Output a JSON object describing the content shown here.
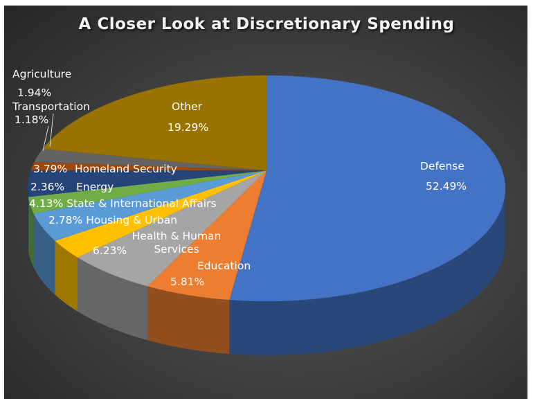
{
  "chart_data": {
    "type": "pie",
    "title": "A Closer Look at Discretionary Spending",
    "style": "3d-pie",
    "legend": "none",
    "slices": [
      {
        "label": "Defense",
        "value": 52.49,
        "display": "52.49%",
        "color": "#4472C4"
      },
      {
        "label": "Education",
        "value": 5.81,
        "display": "5.81%",
        "color": "#ED7D31"
      },
      {
        "label": "Health & Human Services",
        "value": 6.23,
        "display": "6.23%",
        "color": "#A5A5A5"
      },
      {
        "label": "Housing & Urban",
        "value": 2.78,
        "display": "2.78%",
        "color": "#FFC000"
      },
      {
        "label": "State & International Affairs",
        "value": 4.13,
        "display": "4.13%",
        "color": "#5B9BD5"
      },
      {
        "label": "Energy",
        "value": 2.36,
        "display": "2.36%",
        "color": "#70AD47"
      },
      {
        "label": "Homeland Security",
        "value": 3.79,
        "display": "3.79%",
        "color": "#264478"
      },
      {
        "label": "Transportation",
        "value": 1.18,
        "display": "1.18%",
        "color": "#9E480E"
      },
      {
        "label": "Agriculture",
        "value": 1.94,
        "display": "1.94%",
        "color": "#636363"
      },
      {
        "label": "Other",
        "value": 19.29,
        "display": "19.29%",
        "color": "#997300"
      }
    ]
  }
}
